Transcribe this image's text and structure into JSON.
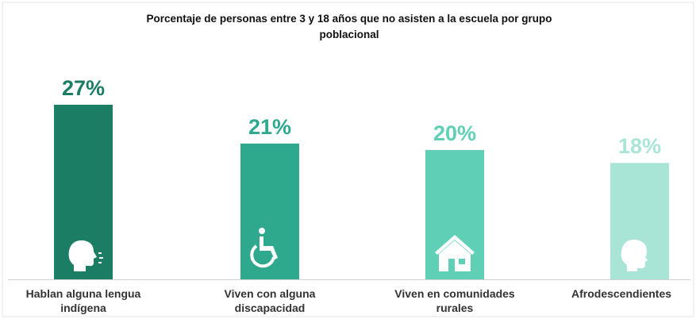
{
  "chart_data": {
    "type": "bar",
    "title": "Porcentaje de personas entre 3 y 18 años que no asisten a la escuela por grupo poblacional",
    "categories": [
      "Hablan alguna lengua indígena",
      "Viven con alguna discapacidad",
      "Viven en comunidades rurales",
      "Afrodescendientes"
    ],
    "values": [
      27,
      21,
      20,
      18
    ],
    "value_labels": [
      "27%",
      "21%",
      "20%",
      "18%"
    ],
    "colors": [
      "#1b7d64",
      "#2fa98d",
      "#5fd0b6",
      "#a9e5d6"
    ]
  }
}
